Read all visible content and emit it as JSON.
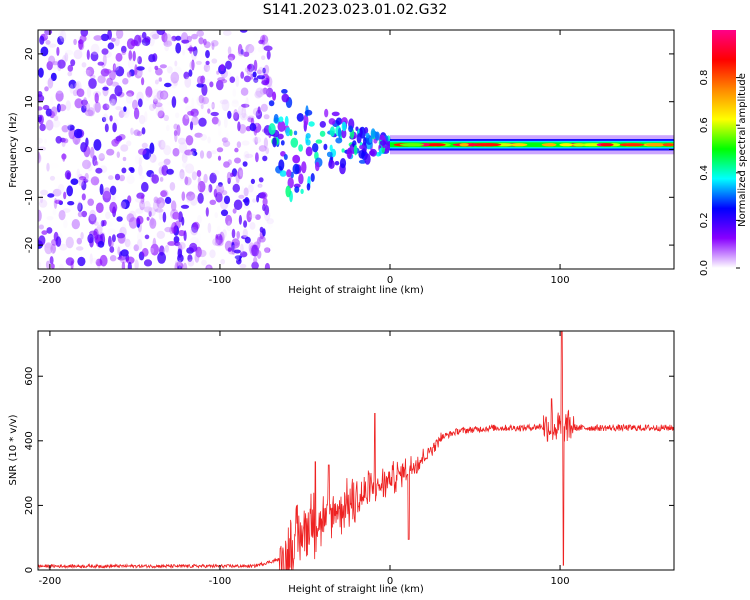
{
  "figure": {
    "title": "S141.2023.023.01.02.G32"
  },
  "chart_data": [
    {
      "type": "heatmap",
      "name": "spectrogram",
      "xlabel": "Height of straight line (km)",
      "ylabel": "Frequency (Hz)",
      "xlim": [
        -207,
        167
      ],
      "ylim": [
        -25,
        25
      ],
      "x_ticks": [
        -200,
        -100,
        0,
        100
      ],
      "y_ticks": [
        -20,
        -10,
        0,
        10,
        20
      ],
      "colorbar": {
        "label": "Normalized spectral amplitude",
        "range": [
          0,
          1
        ],
        "ticks": [
          "0.0",
          "0.2",
          "0.4",
          "0.6",
          "0.8"
        ],
        "tick_values": [
          0,
          0.2,
          0.4,
          0.6,
          0.8
        ],
        "colormap": [
          "#ffffff",
          "#8800ff",
          "#0000ff",
          "#00ffff",
          "#00ff00",
          "#ffff00",
          "#ff8800",
          "#ff0000",
          "#ff0088"
        ]
      },
      "features": {
        "noise_region_x": [
          -207,
          -70
        ],
        "transition_region_x": [
          -70,
          0
        ],
        "carrier_line_x": [
          0,
          167
        ],
        "carrier_frequency": 1
      }
    },
    {
      "type": "line",
      "name": "snr",
      "xlabel": "Height of straight line (km)",
      "ylabel": "SNR (10 * v/v)",
      "xlim": [
        -207,
        167
      ],
      "ylim": [
        0,
        740
      ],
      "x_ticks": [
        -200,
        -100,
        0,
        100
      ],
      "y_ticks": [
        0,
        200,
        400,
        600
      ],
      "line_color": "#ee2222",
      "series_profile": {
        "x": [
          -207,
          -150,
          -80,
          -60,
          -50,
          -40,
          -30,
          -20,
          -10,
          0,
          10,
          20,
          30,
          40,
          60,
          80,
          90,
          95,
          100,
          105,
          110,
          130,
          167
        ],
        "y": [
          12,
          12,
          12,
          40,
          130,
          150,
          190,
          210,
          250,
          280,
          310,
          350,
          410,
          430,
          440,
          440,
          445,
          445,
          440,
          445,
          440,
          440,
          440
        ]
      },
      "spikes": [
        {
          "x": -44,
          "y": 335
        },
        {
          "x": -36,
          "y": 325
        },
        {
          "x": -9,
          "y": 485
        },
        {
          "x": 11,
          "y": 95
        },
        {
          "x": 95,
          "y": 530
        },
        {
          "x": 101,
          "y": 740
        },
        {
          "x": 102,
          "y": 15
        }
      ]
    }
  ]
}
